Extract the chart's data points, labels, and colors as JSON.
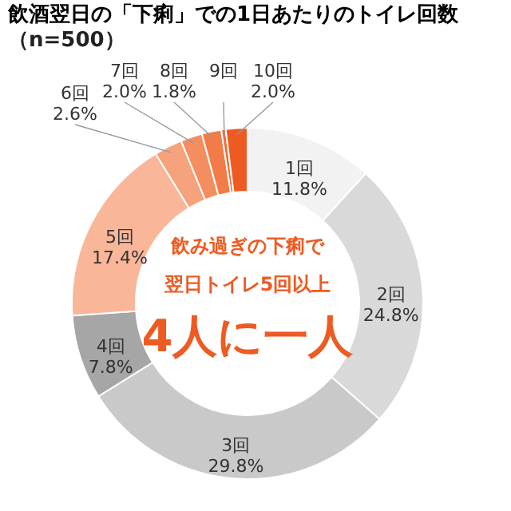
{
  "chart_data": {
    "type": "donut",
    "title": "飲酒翌日の「下痢」での1日あたりのトイレ回数",
    "subtitle": "（n=500）",
    "categories": [
      "1回",
      "2回",
      "3回",
      "4回",
      "5回",
      "6回",
      "7回",
      "8回",
      "9回",
      "10回"
    ],
    "values": [
      11.8,
      24.8,
      29.8,
      7.8,
      17.4,
      2.6,
      2.0,
      1.8,
      0.4,
      2.0
    ],
    "value_labels": [
      "11.8%",
      "24.8%",
      "29.8%",
      "7.8%",
      "17.4%",
      "2.6%",
      "2.0%",
      "1.8%",
      null,
      "2.0%"
    ],
    "colors": [
      "#f2f2f2",
      "#d9d9d9",
      "#c9c9c9",
      "#a6a6a6",
      "#f9b699",
      "#f6a27c",
      "#f48e60",
      "#f27c48",
      "#f06b33",
      "#ee5b22"
    ],
    "annotations": [
      "飲み過ぎの下痢で",
      "翌日トイレ5回以上",
      "4人に一人"
    ],
    "legend": false
  }
}
